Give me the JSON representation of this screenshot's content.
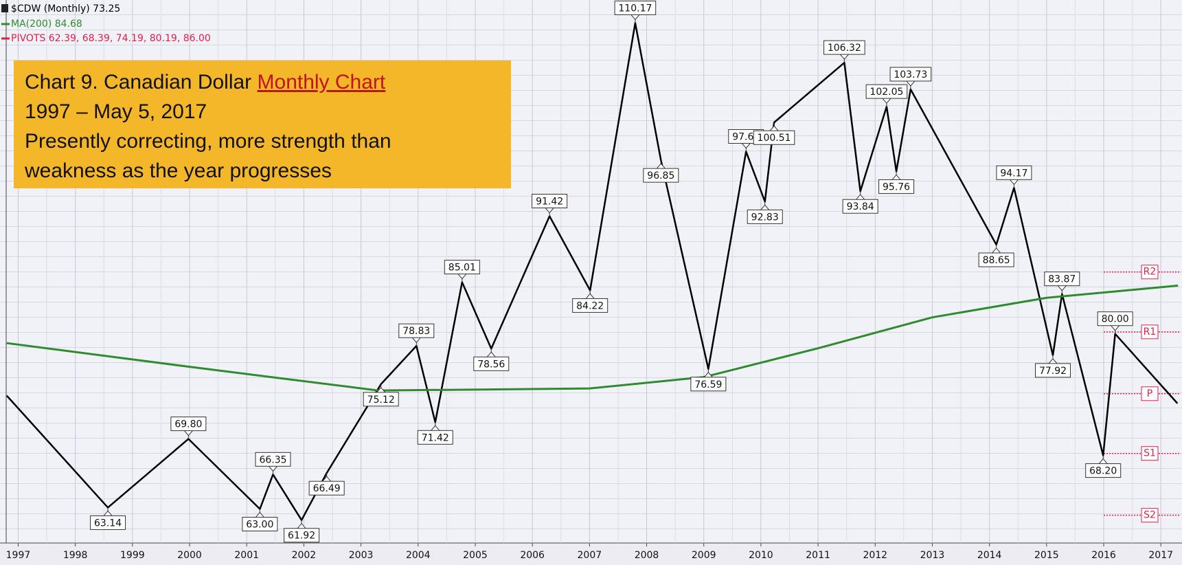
{
  "chart_data": {
    "type": "line",
    "legend": [
      "$CDW (Monthly) 73.25",
      "MA(200) 84.68",
      "PIVOTS 62.39, 68.39, 74.19, 80.19, 86.00"
    ],
    "annotation": {
      "title_prefix": "Chart 9. Canadian Dollar ",
      "link": "Monthly Chart",
      "lines": [
        "1997 – May 5, 2017",
        "Presently correcting, more strength than",
        "weakness as the year progresses"
      ]
    },
    "xlim": [
      1996.79,
      2017.37
    ],
    "xticks": [
      1997,
      1998,
      1999,
      2000,
      2001,
      2002,
      2003,
      2004,
      2005,
      2006,
      2007,
      2008,
      2009,
      2010,
      2011,
      2012,
      2013,
      2014,
      2015,
      2016,
      2017
    ],
    "ylim": [
      59.7,
      112.4
    ],
    "grid": true,
    "series": [
      {
        "name": "$CDW (Monthly) 73.25",
        "color": "#000000",
        "x": [
          1996.8,
          1998.57,
          1999.98,
          2001.23,
          2001.46,
          2001.96,
          2002.4,
          2003.35,
          2003.97,
          2004.3,
          2004.77,
          2005.28,
          2006.3,
          2007.01,
          2007.8,
          2008.25,
          2009.08,
          2009.74,
          2010.07,
          2010.23,
          2011.46,
          2011.74,
          2012.2,
          2012.37,
          2012.62,
          2014.12,
          2014.43,
          2015.11,
          2015.27,
          2015.99,
          2016.2,
          2017.29
        ],
        "values": [
          74,
          63.14,
          69.8,
          63.0,
          66.35,
          61.92,
          66.49,
          75.12,
          78.83,
          71.42,
          85.01,
          78.56,
          91.42,
          84.22,
          110.17,
          96.85,
          76.59,
          97.69,
          92.83,
          100.51,
          106.32,
          93.84,
          102.05,
          95.76,
          103.73,
          88.65,
          94.17,
          77.92,
          83.87,
          68.2,
          80.0,
          73.25
        ],
        "value_labels": [
          null,
          "63.14",
          "69.80",
          "63.00",
          "66.35",
          "61.92",
          "66.49",
          "75.12",
          "78.83",
          "71.42",
          "85.01",
          "78.56",
          "91.42",
          "84.22",
          "110.17",
          "96.85",
          "76.59",
          "97.69",
          "92.83",
          "100.51",
          "106.32",
          "93.84",
          "102.05",
          "95.76",
          "103.73",
          "88.65",
          "94.17",
          "77.92",
          "83.87",
          "68.20",
          "80.00",
          null
        ]
      },
      {
        "name": "MA(200) 84.68",
        "color": "#2e8b2e",
        "x": [
          1996.8,
          2000.0,
          2003.3,
          2007.0,
          2009.0,
          2011.0,
          2013.0,
          2015.0,
          2017.3
        ],
        "values": [
          79.1,
          76.8,
          74.5,
          74.7,
          75.8,
          78.6,
          81.6,
          83.5,
          84.68
        ]
      }
    ],
    "pivots": {
      "color": "#e0204a",
      "x": 2016.0,
      "labels": [
        "S2",
        "S1",
        "P",
        "R1",
        "R2"
      ],
      "values": [
        62.39,
        68.39,
        74.19,
        80.19,
        86.0
      ]
    }
  }
}
